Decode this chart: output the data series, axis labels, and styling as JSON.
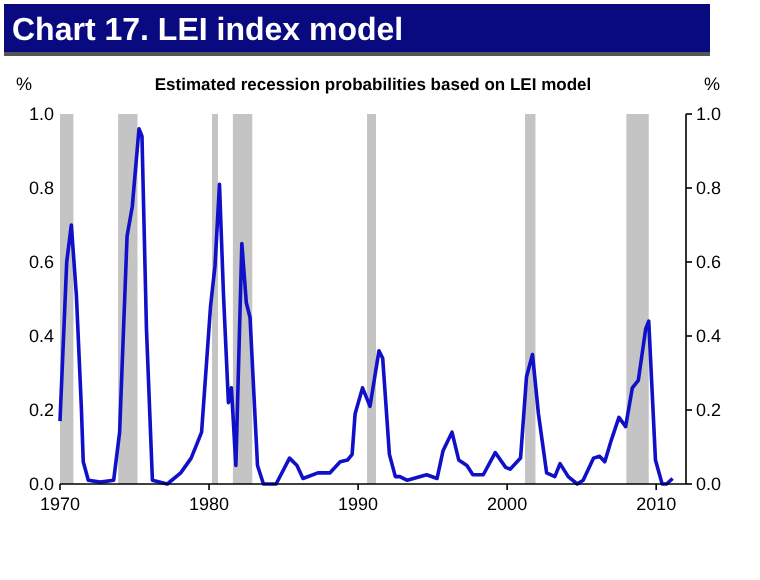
{
  "chart_data": {
    "type": "line",
    "title": "Chart 17.  LEI index model",
    "subtitle": "Estimated recession probabilities based on LEI model",
    "ylabel": "%",
    "y2label": "%",
    "x": [
      1970.0,
      1970.45,
      1970.76,
      1971.1,
      1971.43,
      1971.56,
      1971.9,
      1972.7,
      1973.6,
      1974.0,
      1974.5,
      1974.85,
      1975.3,
      1975.5,
      1975.8,
      1976.2,
      1977.2,
      1978.1,
      1978.8,
      1979.2,
      1979.5,
      1980.1,
      1980.4,
      1980.7,
      1980.97,
      1981.3,
      1981.5,
      1981.8,
      1982.2,
      1982.5,
      1982.75,
      1983.25,
      1983.65,
      1984.5,
      1985.4,
      1985.9,
      1986.3,
      1987.3,
      1988.1,
      1988.8,
      1989.3,
      1989.6,
      1989.8,
      1990.3,
      1990.8,
      1991.4,
      1991.65,
      1992.1,
      1992.5,
      1992.8,
      1993.3,
      1994.6,
      1995.3,
      1995.7,
      1996.3,
      1996.75,
      1997.3,
      1997.7,
      1998.4,
      1999.2,
      1999.9,
      2000.2,
      2000.9,
      2001.3,
      2001.7,
      2002.1,
      2002.65,
      2003.2,
      2003.55,
      2004.1,
      2004.7,
      2005.1,
      2005.8,
      2006.2,
      2006.55,
      2007.0,
      2007.5,
      2007.95,
      2008.4,
      2008.8,
      2009.3,
      2009.5,
      2009.95,
      2010.4,
      2010.7,
      2011.1
    ],
    "series": [
      {
        "color": "#1010c8",
        "values": [
          0.17,
          0.6,
          0.7,
          0.51,
          0.21,
          0.06,
          0.01,
          0.005,
          0.01,
          0.14,
          0.67,
          0.75,
          0.96,
          0.94,
          0.42,
          0.01,
          0.0,
          0.03,
          0.07,
          0.11,
          0.14,
          0.48,
          0.59,
          0.81,
          0.51,
          0.22,
          0.26,
          0.05,
          0.65,
          0.49,
          0.45,
          0.05,
          0.0,
          0.0,
          0.07,
          0.05,
          0.015,
          0.03,
          0.03,
          0.06,
          0.065,
          0.08,
          0.19,
          0.26,
          0.21,
          0.36,
          0.34,
          0.08,
          0.02,
          0.02,
          0.01,
          0.025,
          0.015,
          0.09,
          0.14,
          0.065,
          0.05,
          0.025,
          0.025,
          0.085,
          0.045,
          0.04,
          0.07,
          0.29,
          0.35,
          0.19,
          0.03,
          0.02,
          0.055,
          0.02,
          0.0,
          0.01,
          0.07,
          0.075,
          0.06,
          0.12,
          0.18,
          0.155,
          0.26,
          0.28,
          0.42,
          0.44,
          0.065,
          0.0,
          0.0,
          0.015
        ]
      }
    ],
    "xlim": [
      1970,
      2012
    ],
    "xticks": [
      1970,
      1980,
      1990,
      2000,
      2010
    ],
    "ylim": [
      0,
      1
    ],
    "yticks": [
      {
        "value": 0,
        "label": "0.0"
      },
      {
        "value": 0.2,
        "label": "0.2"
      },
      {
        "value": 0.4,
        "label": "0.4"
      },
      {
        "value": 0.6,
        "label": "0.6"
      },
      {
        "value": 0.8,
        "label": "0.8"
      },
      {
        "value": 1,
        "label": "1.0"
      }
    ],
    "y2lim": [
      0,
      1
    ],
    "y2ticks": [
      {
        "value": 0,
        "label": "0.0"
      },
      {
        "value": 0.2,
        "label": "0.2"
      },
      {
        "value": 0.4,
        "label": "0.4"
      },
      {
        "value": 0.6,
        "label": "0.6"
      },
      {
        "value": 0.8,
        "label": "0.8"
      },
      {
        "value": 1,
        "label": "1.0"
      }
    ],
    "bands": [
      {
        "axis": "x",
        "from": 1970.0,
        "to": 1970.9,
        "color": "#c4c4c4"
      },
      {
        "axis": "x",
        "from": 1973.9,
        "to": 1975.2,
        "color": "#c4c4c4"
      },
      {
        "axis": "x",
        "from": 1980.2,
        "to": 1980.6,
        "color": "#c4c4c4"
      },
      {
        "axis": "x",
        "from": 1981.6,
        "to": 1982.9,
        "color": "#c4c4c4"
      },
      {
        "axis": "x",
        "from": 1990.6,
        "to": 1991.2,
        "color": "#c4c4c4"
      },
      {
        "axis": "x",
        "from": 2001.2,
        "to": 2001.9,
        "color": "#c4c4c4"
      },
      {
        "axis": "x",
        "from": 2008.0,
        "to": 2009.5,
        "color": "#c4c4c4"
      }
    ]
  }
}
